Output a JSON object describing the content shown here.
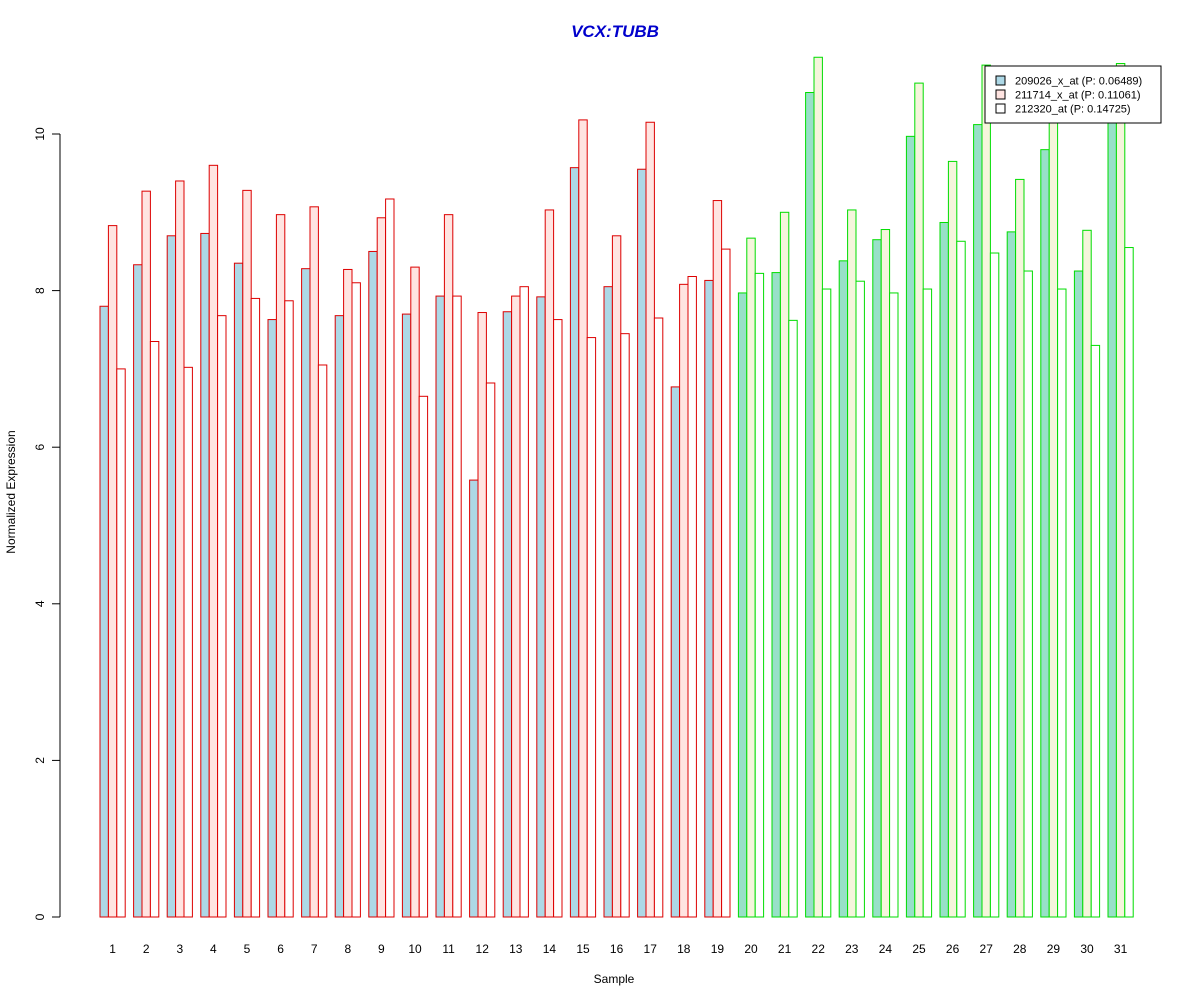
{
  "colors": {
    "title": "#0000cc",
    "groupA_stroke": "#dd0000",
    "groupB_stroke": "#00dd00",
    "groupA_fills": [
      "#add8e6",
      "#ffe4e1",
      "#ffffff"
    ],
    "groupB_fills": [
      "#98e0c8",
      "#f5f5dc",
      "#ffffff"
    ],
    "axis": "#000000"
  },
  "chart_data": {
    "type": "bar",
    "title": "VCX:TUBB",
    "xlabel": "Sample",
    "ylabel": "Normalized Expression",
    "ylim": [
      0,
      11
    ],
    "yticks": [
      0,
      2,
      4,
      6,
      8,
      10
    ],
    "grid": false,
    "legend_position": "top-right",
    "categories": [
      "1",
      "2",
      "3",
      "4",
      "5",
      "6",
      "7",
      "8",
      "9",
      "10",
      "11",
      "12",
      "13",
      "14",
      "15",
      "16",
      "17",
      "18",
      "19",
      "20",
      "21",
      "22",
      "23",
      "24",
      "25",
      "26",
      "27",
      "28",
      "29",
      "30",
      "31"
    ],
    "group_split_after": 19,
    "series": [
      {
        "name": "209026_x_at (P: 0.06489)",
        "values": [
          7.8,
          8.33,
          8.7,
          8.73,
          8.35,
          7.63,
          8.28,
          7.68,
          8.5,
          7.7,
          7.93,
          5.58,
          7.73,
          7.92,
          9.57,
          8.05,
          9.55,
          6.77,
          8.13,
          7.97,
          8.23,
          10.53,
          8.38,
          8.65,
          9.97,
          8.87,
          10.12,
          8.75,
          9.8,
          8.25,
          10.33
        ]
      },
      {
        "name": "211714_x_at (P: 0.11061)",
        "values": [
          8.83,
          9.27,
          9.4,
          9.6,
          9.28,
          8.97,
          9.07,
          8.27,
          8.93,
          8.3,
          8.97,
          7.72,
          7.93,
          9.03,
          10.18,
          8.7,
          10.15,
          8.08,
          9.15,
          8.67,
          9.0,
          10.98,
          9.03,
          8.78,
          10.65,
          9.65,
          10.88,
          9.42,
          10.3,
          8.77,
          10.9
        ]
      },
      {
        "name": "212320_at (P: 0.14725)",
        "values": [
          7.0,
          7.35,
          7.02,
          7.68,
          7.9,
          7.87,
          7.05,
          8.1,
          9.17,
          6.65,
          7.93,
          6.82,
          8.05,
          7.63,
          7.4,
          7.45,
          7.65,
          8.18,
          8.53,
          8.22,
          7.62,
          8.02,
          8.12,
          7.97,
          8.02,
          8.63,
          8.48,
          8.25,
          8.02,
          7.3,
          8.55
        ]
      }
    ]
  }
}
